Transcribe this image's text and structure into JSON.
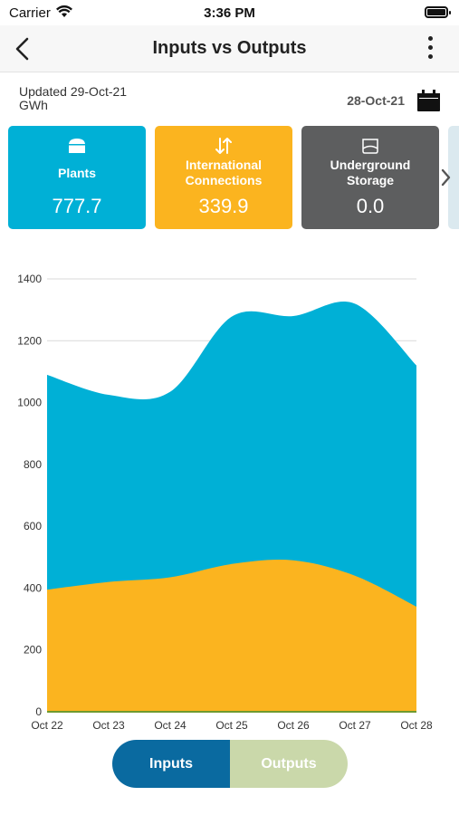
{
  "status_bar": {
    "carrier": "Carrier",
    "time": "3:36 PM"
  },
  "header": {
    "title": "Inputs vs Outputs",
    "back_icon": "chevron-left-icon",
    "more_icon": "more-vertical-icon"
  },
  "info": {
    "updated": "Updated 29-Oct-21",
    "unit": "GWh",
    "selected_date": "28-Oct-21",
    "calendar_icon": "calendar-icon"
  },
  "tiles": [
    {
      "label": "Plants",
      "value": "777.7",
      "icon": "plant-icon",
      "color": "#00b0d6"
    },
    {
      "label": "International Connections",
      "value": "339.9",
      "icon": "arrows-up-down-icon",
      "color": "#fbb41f"
    },
    {
      "label": "Underground Storage",
      "value": "0.0",
      "icon": "storage-tank-icon",
      "color": "#5d5e5f"
    }
  ],
  "toggle": {
    "inputs_label": "Inputs",
    "outputs_label": "Outputs",
    "selected": "Inputs"
  },
  "colors": {
    "plants": "#00b0d6",
    "international": "#fbb41f",
    "storage": "#5d5e5f",
    "toggle_active": "#0a6aa0",
    "toggle_inactive": "#cad8aa"
  },
  "chart_data": {
    "type": "area",
    "stacked": true,
    "categories": [
      "Oct 22",
      "Oct 23",
      "Oct 24",
      "Oct 25",
      "Oct 26",
      "Oct 27",
      "Oct 28"
    ],
    "series": [
      {
        "values": [
          395,
          420,
          435,
          478,
          490,
          440,
          340
        ],
        "color": "#fbb41f"
      },
      {
        "values": [
          695,
          605,
          600,
          800,
          790,
          880,
          780
        ],
        "color": "#00b0d6"
      }
    ],
    "ylim": [
      0,
      1400
    ],
    "yticks": [
      0,
      200,
      400,
      600,
      800,
      1000,
      1200,
      1400
    ],
    "grid": true,
    "legend": "none"
  }
}
